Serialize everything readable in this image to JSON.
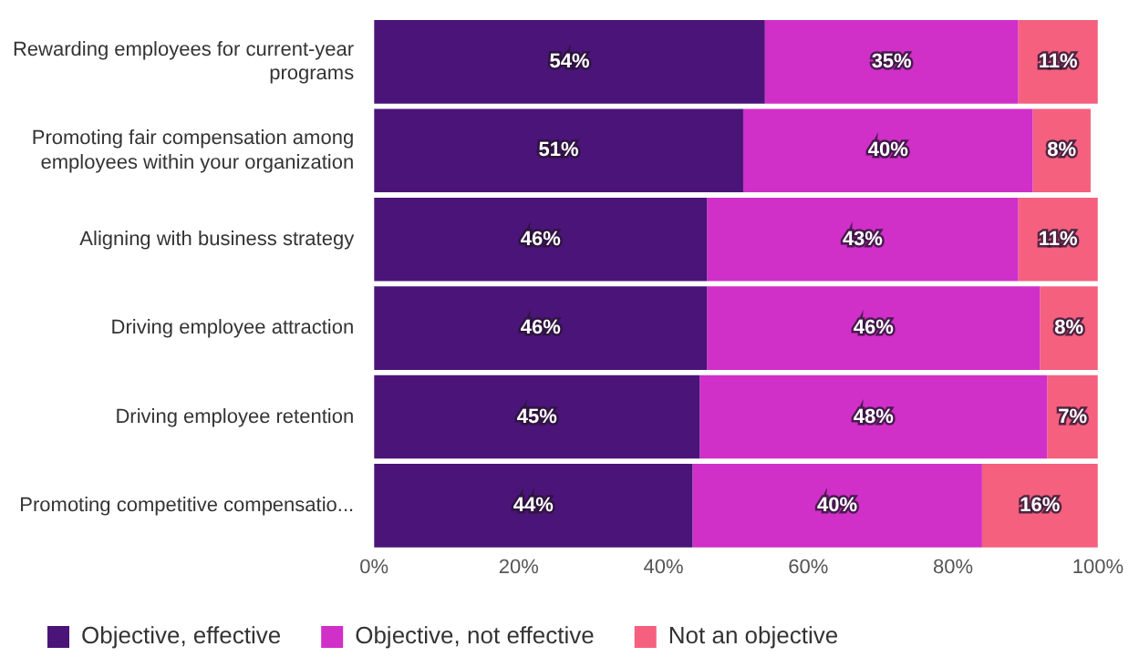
{
  "chart_data": {
    "type": "bar",
    "orientation": "horizontal",
    "stacked": true,
    "categories": [
      "Rewarding employees for current-year programs",
      "Promoting fair compensation among employees within your organization",
      "Aligning with business strategy",
      "Driving employee attraction",
      "Driving employee retention",
      "Promoting competitive compensatio..."
    ],
    "series": [
      {
        "name": "Objective, effective",
        "color": "#4a1478",
        "values": [
          54,
          51,
          46,
          46,
          45,
          44
        ],
        "value_labels": [
          "54%",
          "51%",
          "46%",
          "46%",
          "45%",
          "44%"
        ]
      },
      {
        "name": "Objective, not effective",
        "color": "#d02fc8",
        "values": [
          35,
          40,
          43,
          46,
          48,
          40
        ],
        "value_labels": [
          "35%",
          "40%",
          "43%",
          "46%",
          "48%",
          "40%"
        ]
      },
      {
        "name": "Not an objective",
        "color": "#f4607e",
        "values": [
          11,
          8,
          11,
          8,
          7,
          16
        ],
        "value_labels": [
          "11%",
          "8%",
          "11%",
          "8%",
          "7%",
          "16%"
        ]
      }
    ],
    "xlim": [
      0,
      100
    ],
    "xticks": [
      {
        "value": 0,
        "label": "0%"
      },
      {
        "value": 20,
        "label": "20%"
      },
      {
        "value": 40,
        "label": "40%"
      },
      {
        "value": 60,
        "label": "60%"
      },
      {
        "value": 80,
        "label": "80%"
      },
      {
        "value": 100,
        "label": "100%"
      }
    ],
    "grid": false,
    "legend": "bottom left"
  }
}
